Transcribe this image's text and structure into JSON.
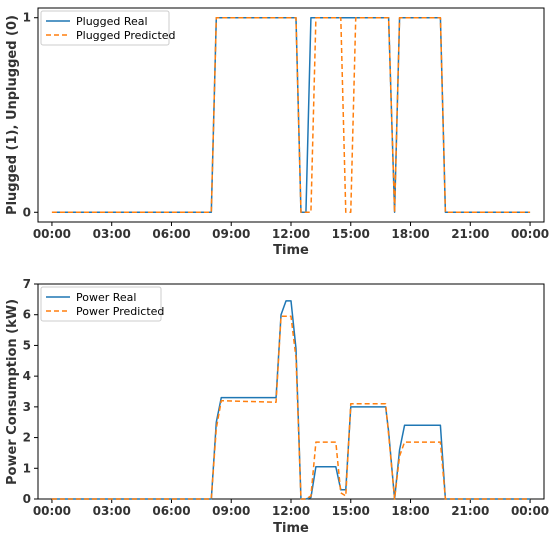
{
  "chart_data": [
    {
      "type": "line",
      "title": "",
      "xlabel": "Time",
      "ylabel": "Plugged (1), Unplugged (0)",
      "xlim": [
        -0.7,
        24.7
      ],
      "ylim": [
        -0.05,
        1.05
      ],
      "xticks": [
        0,
        3,
        6,
        9,
        12,
        15,
        18,
        21,
        24
      ],
      "xtick_labels": [
        "00:00",
        "03:00",
        "06:00",
        "09:00",
        "12:00",
        "15:00",
        "18:00",
        "21:00",
        "00:00"
      ],
      "yticks": [
        0,
        1
      ],
      "ytick_labels": [
        "0",
        "1"
      ],
      "grid": false,
      "legend": "top-left",
      "series": [
        {
          "name": "Plugged Real",
          "color": "#1f77b4",
          "style": "solid",
          "x": [
            0,
            8.0,
            8.25,
            12.25,
            12.5,
            12.75,
            13.0,
            16.9,
            17.2,
            17.45,
            19.5,
            19.75,
            24
          ],
          "y": [
            0,
            0,
            1,
            1,
            0,
            0,
            1,
            1,
            0,
            1,
            1,
            0,
            0
          ]
        },
        {
          "name": "Plugged Predicted",
          "color": "#ff7f0e",
          "style": "dashed",
          "x": [
            0,
            8.0,
            8.25,
            12.25,
            12.5,
            13.0,
            13.25,
            14.5,
            14.75,
            15.0,
            15.25,
            16.9,
            17.2,
            17.45,
            19.5,
            19.75,
            24
          ],
          "y": [
            0,
            0,
            1,
            1,
            0,
            0,
            1,
            1,
            0,
            0,
            1,
            1,
            0,
            1,
            1,
            0,
            0
          ]
        }
      ]
    },
    {
      "type": "line",
      "title": "",
      "xlabel": "Time",
      "ylabel": "Power Consumption (kW)",
      "xlim": [
        -0.7,
        24.7
      ],
      "ylim": [
        0,
        7
      ],
      "xticks": [
        0,
        3,
        6,
        9,
        12,
        15,
        18,
        21,
        24
      ],
      "xtick_labels": [
        "00:00",
        "03:00",
        "06:00",
        "09:00",
        "12:00",
        "15:00",
        "18:00",
        "21:00",
        "00:00"
      ],
      "yticks": [
        0,
        1,
        2,
        3,
        4,
        5,
        6,
        7
      ],
      "ytick_labels": [
        "0",
        "1",
        "2",
        "3",
        "4",
        "5",
        "6",
        "7"
      ],
      "grid": false,
      "legend": "top-left",
      "series": [
        {
          "name": "Power Real",
          "color": "#1f77b4",
          "style": "solid",
          "x": [
            0,
            8.0,
            8.25,
            8.5,
            11.25,
            11.5,
            11.75,
            12.0,
            12.25,
            12.5,
            12.75,
            13.0,
            13.25,
            14.25,
            14.5,
            14.75,
            15.0,
            16.75,
            16.9,
            17.2,
            17.45,
            17.7,
            19.5,
            19.75,
            24
          ],
          "y": [
            0,
            0,
            2.5,
            3.3,
            3.3,
            6.0,
            6.45,
            6.45,
            4.9,
            0,
            0,
            0.05,
            1.05,
            1.05,
            0.3,
            0.3,
            3.0,
            3.0,
            2.2,
            0,
            1.6,
            2.4,
            2.4,
            0,
            0
          ]
        },
        {
          "name": "Power Predicted",
          "color": "#ff7f0e",
          "style": "dashed",
          "x": [
            0,
            8.0,
            8.25,
            8.5,
            11.25,
            11.5,
            11.75,
            12.0,
            12.25,
            12.5,
            12.75,
            13.0,
            13.25,
            14.25,
            14.5,
            14.75,
            15.0,
            16.75,
            16.9,
            17.2,
            17.45,
            17.7,
            18.7,
            19.5,
            19.75,
            24
          ],
          "y": [
            0,
            0,
            2.3,
            3.2,
            3.15,
            5.95,
            5.95,
            5.95,
            4.6,
            0,
            0,
            0.1,
            1.85,
            1.85,
            0.2,
            0.1,
            3.1,
            3.1,
            2.1,
            0,
            1.4,
            1.85,
            1.85,
            1.85,
            0,
            0
          ]
        }
      ]
    }
  ]
}
